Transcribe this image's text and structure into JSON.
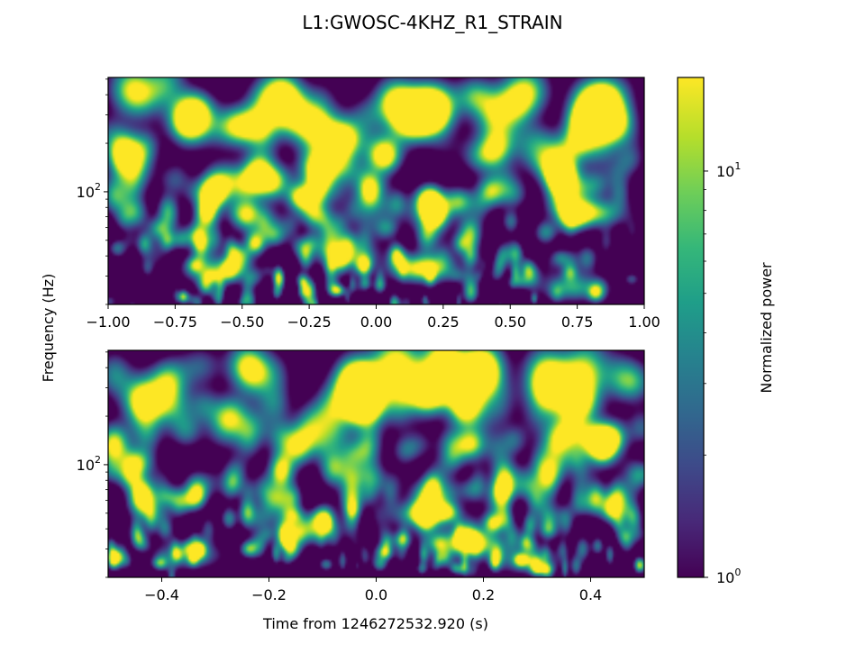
{
  "chart_data": [
    {
      "type": "heatmap",
      "title": "L1:GWOSC-4KHZ_R1_STRAIN",
      "xlabel": "",
      "ylabel": "Frequency (Hz)",
      "xlim": [
        -1.0,
        1.0
      ],
      "ylim": [
        20,
        512
      ],
      "yscale": "log",
      "xticks": [
        -1.0,
        -0.75,
        -0.5,
        -0.25,
        0.0,
        0.25,
        0.5,
        0.75,
        1.0
      ],
      "xtick_labels": [
        "−1.00",
        "−0.75",
        "−0.50",
        "−0.25",
        "0.00",
        "0.25",
        "0.50",
        "0.75",
        "1.00"
      ],
      "yticks": [
        100
      ],
      "colormap": "viridis",
      "features": [
        {
          "t": 0.17,
          "f": 34,
          "power": 16
        },
        {
          "t": 0.8,
          "f": 75,
          "power": 10
        },
        {
          "t": -0.6,
          "f": 33,
          "power": 7
        },
        {
          "t": -0.12,
          "f": 42,
          "power": 6
        },
        {
          "t": 0.73,
          "f": 26,
          "power": 6
        }
      ]
    },
    {
      "type": "heatmap",
      "xlabel": "Time from 1246272532.920 (s)",
      "xlim": [
        -0.5,
        0.5
      ],
      "ylim": [
        20,
        512
      ],
      "yscale": "log",
      "xticks": [
        -0.4,
        -0.2,
        0.0,
        0.2,
        0.4
      ],
      "xtick_labels": [
        "−0.4",
        "−0.2",
        "0.0",
        "0.2",
        "0.4"
      ],
      "yticks": [
        100
      ],
      "colormap": "viridis",
      "features": [
        {
          "t": 0.17,
          "f": 33,
          "power": 17
        },
        {
          "t": 0.09,
          "f": 50,
          "power": 10
        },
        {
          "t": -0.13,
          "f": 40,
          "power": 8
        },
        {
          "t": 0.28,
          "f": 26,
          "power": 5
        },
        {
          "t": -0.35,
          "f": 28,
          "power": 5
        }
      ]
    }
  ],
  "colorbar": {
    "label": "Normalized power",
    "scale": "log",
    "range": [
      1,
      17
    ],
    "tick_base": "10",
    "tick_exps": [
      "0",
      "1"
    ],
    "colors": [
      "#440154",
      "#482878",
      "#3e4989",
      "#31688e",
      "#26828e",
      "#1f9e89",
      "#35b779",
      "#6ece58",
      "#b5de2b",
      "#fde725"
    ]
  }
}
